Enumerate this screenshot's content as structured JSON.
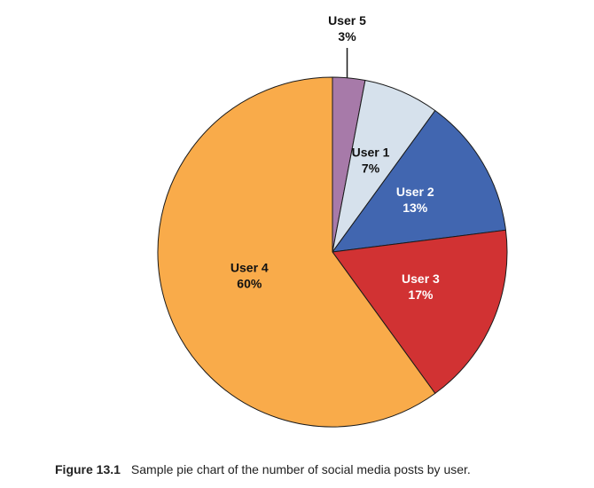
{
  "chart_data": {
    "type": "pie",
    "categories": [
      "User 5",
      "User 1",
      "User 2",
      "User 3",
      "User 4"
    ],
    "values": [
      3,
      7,
      13,
      17,
      60
    ],
    "value_labels": [
      "3%",
      "7%",
      "13%",
      "17%",
      "60%"
    ],
    "start_angle_deg": 0,
    "direction": "clockwise",
    "colors": [
      "#a77aa9",
      "#d6e1ec",
      "#4166b0",
      "#d13233",
      "#f9ab4a"
    ],
    "label_colors": [
      "#111111",
      "#111111",
      "#ffffff",
      "#ffffff",
      "#111111"
    ],
    "outside_labels": [
      "User 5"
    ]
  },
  "caption": {
    "figure_label": "Figure 13.1",
    "text": "Sample pie chart of the number of social media posts by user."
  }
}
